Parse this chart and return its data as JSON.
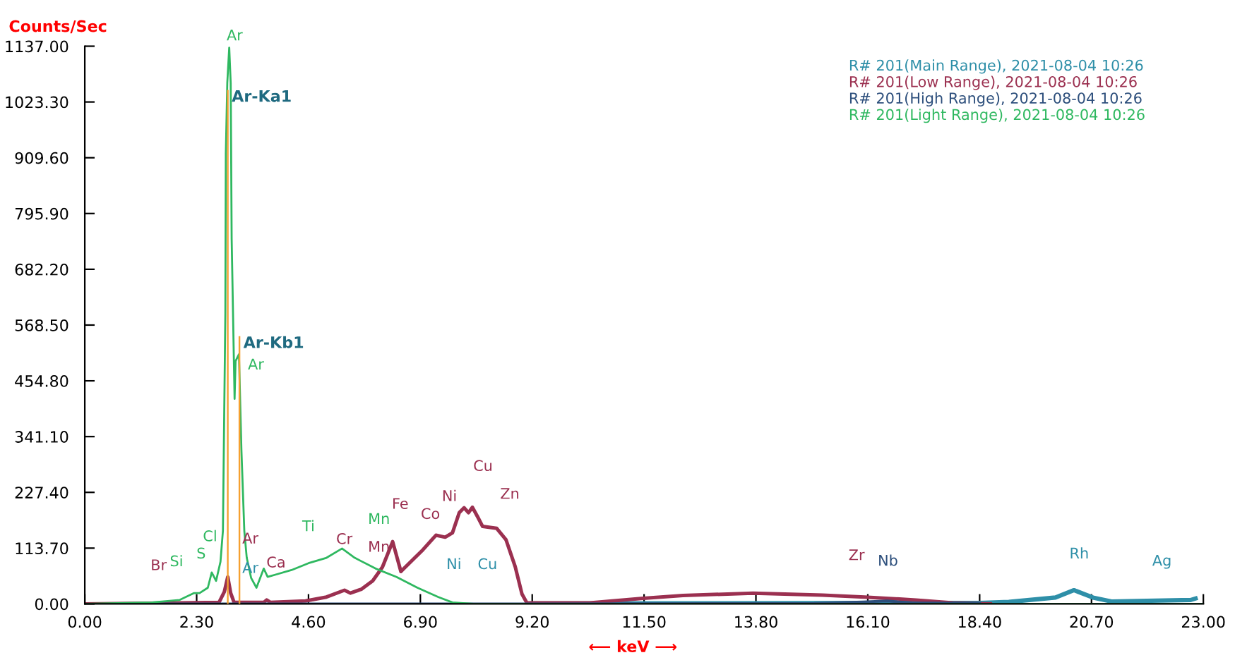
{
  "chart_data": {
    "type": "line",
    "ylabel": "Counts/Sec",
    "xlabel": "⟵ keV ⟶",
    "xlim": [
      0,
      23
    ],
    "ylim": [
      0,
      1137
    ],
    "xticks": [
      {
        "value": 0,
        "label": "0.00"
      },
      {
        "value": 2.3,
        "label": "2.30"
      },
      {
        "value": 4.6,
        "label": "4.60"
      },
      {
        "value": 6.9,
        "label": "6.90"
      },
      {
        "value": 9.2,
        "label": "9.20"
      },
      {
        "value": 11.5,
        "label": "11.50"
      },
      {
        "value": 13.8,
        "label": "13.80"
      },
      {
        "value": 16.1,
        "label": "16.10"
      },
      {
        "value": 18.4,
        "label": "18.40"
      },
      {
        "value": 20.7,
        "label": "20.70"
      },
      {
        "value": 23,
        "label": "23.00"
      }
    ],
    "yticks": [
      {
        "value": 0,
        "label": "0.00"
      },
      {
        "value": 113.7,
        "label": "113.70"
      },
      {
        "value": 227.4,
        "label": "227.40"
      },
      {
        "value": 341.1,
        "label": "341.10"
      },
      {
        "value": 454.8,
        "label": "454.80"
      },
      {
        "value": 568.5,
        "label": "568.50"
      },
      {
        "value": 682.2,
        "label": "682.20"
      },
      {
        "value": 795.9,
        "label": "795.90"
      },
      {
        "value": 909.6,
        "label": "909.60"
      },
      {
        "value": 1023.3,
        "label": "1023.30"
      },
      {
        "value": 1137,
        "label": "1137.00"
      }
    ],
    "grid": false,
    "legend": "top right",
    "marker": "none",
    "line_style": "solid",
    "series": [
      {
        "name": "R# 201(Main Range), 2021-08-04 10:26",
        "color": "#2e8fa8",
        "x": [
          9.2,
          18.4,
          19.0,
          19.96,
          20.34,
          20.73,
          21.11,
          22.74,
          22.84
        ],
        "values": [
          1,
          2,
          4,
          13,
          28,
          13,
          5,
          8,
          11
        ]
      },
      {
        "name": "R# 201(Low Range), 2021-08-04 10:26",
        "color": "#9b3050",
        "x": [
          0,
          2.76,
          2.87,
          2.94,
          3.0,
          3.07,
          3.68,
          3.74,
          3.82,
          4.54,
          4.97,
          5.34,
          5.46,
          5.69,
          5.92,
          6.12,
          6.33,
          6.5,
          6.55,
          6.93,
          7.22,
          7.41,
          7.56,
          7.7,
          7.8,
          7.89,
          7.97,
          8.08,
          8.18,
          8.47,
          8.66,
          8.85,
          8.99,
          9.09,
          10.38,
          11.44,
          12.3,
          13.74,
          15.17,
          16.03,
          17.09,
          17.85,
          18.62
        ],
        "values": [
          0,
          3,
          25,
          55,
          22,
          3,
          3,
          8,
          3,
          6,
          14,
          28,
          22,
          30,
          47,
          75,
          127,
          66,
          71,
          108,
          140,
          136,
          145,
          186,
          196,
          186,
          197,
          177,
          158,
          154,
          131,
          76,
          20,
          2,
          2,
          11,
          17,
          22,
          18,
          14,
          8,
          2,
          0
        ]
      },
      {
        "name": "R# 201(High Range), 2021-08-04 10:26",
        "color": "#2d4f7c",
        "x": [
          1.0,
          9.0,
          15.0,
          16.0,
          16.5,
          17.0,
          18.4
        ],
        "values": [
          0,
          0,
          1,
          4,
          6,
          2,
          1
        ]
      },
      {
        "name": "R# 201(Light Range), 2021-08-04 10:26",
        "color": "#2fb860",
        "x": [
          0,
          1.38,
          1.95,
          2.24,
          2.36,
          2.53,
          2.61,
          2.7,
          2.79,
          2.84,
          2.89,
          2.9,
          2.93,
          2.97,
          3.0,
          3.02,
          3.08,
          3.1,
          3.17,
          3.22,
          3.28,
          3.33,
          3.42,
          3.53,
          3.68,
          3.76,
          3.97,
          4.25,
          4.6,
          4.97,
          5.29,
          5.55,
          5.98,
          6.41,
          6.84,
          7.27,
          7.56,
          7.99,
          23
        ],
        "values": [
          0,
          3,
          8,
          22,
          22,
          33,
          64,
          47,
          86,
          149,
          592,
          918,
          1062,
          1134,
          1062,
          744,
          418,
          495,
          509,
          315,
          149,
          94,
          53,
          33,
          72,
          55,
          61,
          69,
          83,
          94,
          113,
          94,
          72,
          55,
          33,
          14,
          3,
          0,
          0
        ]
      },
      {
        "type": "bar",
        "color": "#f5a030",
        "x": [
          2.94,
          3.18
        ],
        "values": [
          1048,
          546
        ]
      }
    ],
    "annotations": [
      {
        "text": "Ar-Ka1",
        "x": 2.94,
        "y": 1048
      },
      {
        "text": "Ar-Kb1",
        "x": 3.18,
        "y": 546
      },
      "Ar",
      "Ar",
      "Br",
      "Si",
      "S",
      "Cl",
      "Ar",
      "Ar",
      "Ca",
      "Ti",
      "Cr",
      "Mn",
      "Mn",
      "Fe",
      "Co",
      "Ni",
      "Cu",
      "Zn",
      "Ni",
      "Cu",
      "Zr",
      "Nb",
      "Rh",
      "Ag"
    ]
  }
}
